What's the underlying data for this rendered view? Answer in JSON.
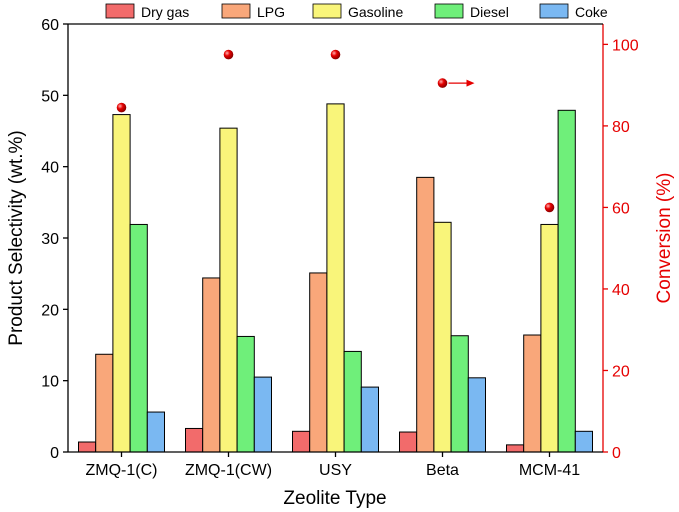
{
  "chart_data": {
    "type": "bar",
    "title": "",
    "xlabel": "Zeolite Type",
    "ylabel": "Product Selectivity (wt.%)",
    "y2label": "Conversion (%)",
    "ylim": [
      0,
      60
    ],
    "y2lim": [
      0,
      105
    ],
    "yticks": [
      "0",
      "10",
      "20",
      "30",
      "40",
      "50",
      "60"
    ],
    "y2ticks": [
      "0",
      "20",
      "40",
      "60",
      "80",
      "100"
    ],
    "categories": [
      "ZMQ-1(C)",
      "ZMQ-1(CW)",
      "USY",
      "Beta",
      "MCM-41"
    ],
    "legend_position": "top",
    "series": [
      {
        "name": "Dry gas",
        "color": "#f26b6b",
        "values": [
          1.4,
          3.3,
          2.9,
          2.8,
          1.0
        ]
      },
      {
        "name": "LPG",
        "color": "#f9a77a",
        "values": [
          13.7,
          24.4,
          25.1,
          38.5,
          16.4
        ]
      },
      {
        "name": "Gasoline",
        "color": "#f9f57a",
        "values": [
          47.3,
          45.4,
          48.8,
          32.2,
          31.9
        ]
      },
      {
        "name": "Diesel",
        "color": "#6fef7a",
        "values": [
          31.9,
          16.2,
          14.1,
          16.3,
          47.9
        ]
      },
      {
        "name": "Coke",
        "color": "#7ab8f2",
        "values": [
          5.6,
          10.5,
          9.1,
          10.4,
          2.9
        ]
      }
    ],
    "conversion": {
      "name": "Conversion",
      "color": "#e60000",
      "values": [
        84.5,
        97.5,
        97.5,
        90.5,
        60.0
      ]
    },
    "axis_color_right": "#e60000"
  }
}
